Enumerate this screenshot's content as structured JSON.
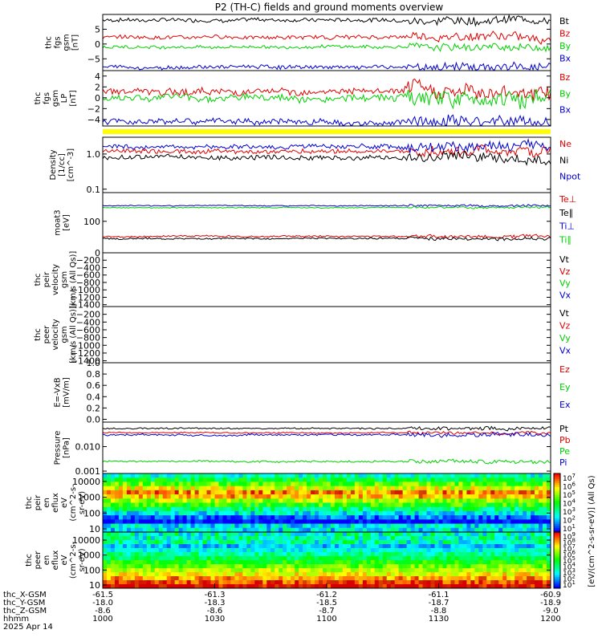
{
  "title": "P2 (TH-C) fields and ground moments overview",
  "colors": {
    "black": "#000000",
    "red": "#e00000",
    "green": "#00d000",
    "blue": "#0000d0",
    "yellow": "#ffff00"
  },
  "chart_data": {
    "type": "line",
    "time": {
      "label": "hhmm",
      "ticks": [
        "1000",
        "1030",
        "1100",
        "1130",
        "1200"
      ],
      "date": "2025 Apr 14"
    },
    "ephemeris": [
      {
        "label": "thc_X-GSM",
        "values": [
          "-61.5",
          "-61.3",
          "-61.2",
          "-61.1",
          "-60.9"
        ]
      },
      {
        "label": "thc_Y-GSM",
        "values": [
          "-18.0",
          "-18.3",
          "-18.5",
          "-18.7",
          "-18.9"
        ]
      },
      {
        "label": "thc_Z-GSM",
        "values": [
          "-8.6",
          "-8.6",
          "-8.7",
          "-8.8",
          "-9.0"
        ]
      }
    ],
    "panels": [
      {
        "id": "fgs_gsm",
        "ylabel": [
          "thc",
          "fgs",
          "gsm",
          "[nT]"
        ],
        "ylim": [
          -9,
          10
        ],
        "yticks": [
          {
            "v": 5,
            "t": "5"
          },
          {
            "v": 0,
            "t": "0"
          },
          {
            "v": -5,
            "t": "−5"
          }
        ],
        "series": [
          {
            "name": "Bt",
            "color": "#000000",
            "level": 8.2,
            "noise": 0.6
          },
          {
            "name": "Bz",
            "color": "#e00000",
            "level": 2.3,
            "noise": 0.6
          },
          {
            "name": "By",
            "color": "#00d000",
            "level": -1.0,
            "noise": 0.5
          },
          {
            "name": "Bx",
            "color": "#0000d0",
            "level": -7.8,
            "noise": 0.6
          }
        ]
      },
      {
        "id": "fgs_gsm_lp",
        "ylabel": [
          "thc",
          "fgs",
          "gsm",
          "LP",
          "[nT]"
        ],
        "ylim": [
          -5.2,
          5
        ],
        "yticks": [
          {
            "v": 4,
            "t": "4"
          },
          {
            "v": 2,
            "t": "2"
          },
          {
            "v": 0,
            "t": "0"
          },
          {
            "v": -2,
            "t": "−2"
          },
          {
            "v": -4,
            "t": "−4"
          }
        ],
        "series": [
          {
            "name": "Bz",
            "color": "#e00000",
            "level": 1.2,
            "noise": 0.6
          },
          {
            "name": "By",
            "color": "#00d000",
            "level": 0.0,
            "noise": 0.6
          },
          {
            "name": "Bx",
            "color": "#0000d0",
            "level": -4.4,
            "noise": 0.5
          }
        ]
      },
      {
        "id": "density",
        "ylabel": [
          "Density",
          "[1/cc]",
          "[cm^-3]"
        ],
        "ylog": true,
        "ylim": [
          0.08,
          3
        ],
        "yticks": [
          {
            "v": 1,
            "t": "1.0"
          },
          {
            "v": 0.1,
            "t": "0.1"
          }
        ],
        "series": [
          {
            "name": "Ne",
            "color": "#e00000",
            "level": 1.2,
            "noise": 0.12
          },
          {
            "name": "Ni",
            "color": "#000000",
            "level": 0.8,
            "noise": 0.12
          },
          {
            "name": "Npot",
            "color": "#0000d0",
            "level": 1.6,
            "noise": 0.12
          }
        ]
      },
      {
        "id": "temp",
        "ylabel": [
          "moat3",
          "[eV]"
        ],
        "ylog": true,
        "ylim": [
          8,
          1000
        ],
        "yticks": [
          {
            "v": 100,
            "t": "100"
          }
        ],
        "series": [
          {
            "name": "Te⊥",
            "color": "#e00000",
            "level": 30,
            "noise": 0.05
          },
          {
            "name": "Te∥",
            "color": "#000000",
            "level": 25,
            "noise": 0.05
          },
          {
            "name": "Ti⊥",
            "color": "#0000d0",
            "level": 350,
            "noise": 0.03
          },
          {
            "name": "Ti∥",
            "color": "#00d000",
            "level": 300,
            "noise": 0.03
          }
        ]
      },
      {
        "id": "peir_vel",
        "ylabel": [
          "thc",
          "peir",
          "velocity",
          "gsm",
          "[km/s (All Qs)]"
        ],
        "ylim": [
          -1450,
          0
        ],
        "yticks": [
          {
            "v": 0,
            "t": "0"
          },
          {
            "v": -200,
            "t": "−200"
          },
          {
            "v": -400,
            "t": "−400"
          },
          {
            "v": -600,
            "t": "−600"
          },
          {
            "v": -800,
            "t": "−800"
          },
          {
            "v": -1000,
            "t": "−1000"
          },
          {
            "v": -1200,
            "t": "−1200"
          },
          {
            "v": -1400,
            "t": "−1400"
          }
        ],
        "series": [
          {
            "name": "Vt",
            "color": "#000000"
          },
          {
            "name": "Vz",
            "color": "#e00000"
          },
          {
            "name": "Vy",
            "color": "#00d000"
          },
          {
            "name": "Vx",
            "color": "#0000d0"
          }
        ]
      },
      {
        "id": "peer_vel",
        "ylabel": [
          "thc",
          "peer",
          "velocity",
          "gsm",
          "[km/s (All Qs)]"
        ],
        "ylim": [
          -1450,
          0
        ],
        "yticks": [
          {
            "v": -200,
            "t": "−200"
          },
          {
            "v": -400,
            "t": "−400"
          },
          {
            "v": -600,
            "t": "−600"
          },
          {
            "v": -800,
            "t": "−800"
          },
          {
            "v": -1000,
            "t": "−1000"
          },
          {
            "v": -1200,
            "t": "−1200"
          },
          {
            "v": -1400,
            "t": "−1400"
          }
        ],
        "series": [
          {
            "name": "Vt",
            "color": "#000000"
          },
          {
            "name": "Vz",
            "color": "#e00000"
          },
          {
            "name": "Vy",
            "color": "#00d000"
          },
          {
            "name": "Vx",
            "color": "#0000d0"
          }
        ]
      },
      {
        "id": "efield",
        "ylabel": [
          "E=-VxB",
          "[mV/m]"
        ],
        "ylim": [
          -0.05,
          1.0
        ],
        "yticks": [
          {
            "v": 1.0,
            "t": "1.0"
          },
          {
            "v": 0.8,
            "t": "0.8"
          },
          {
            "v": 0.6,
            "t": "0.6"
          },
          {
            "v": 0.4,
            "t": "0.4"
          },
          {
            "v": 0.2,
            "t": "0.2"
          },
          {
            "v": 0.0,
            "t": "0.0"
          }
        ],
        "series": [
          {
            "name": "Ez",
            "color": "#e00000"
          },
          {
            "name": "Ey",
            "color": "#00d000"
          },
          {
            "name": "Ex",
            "color": "#0000d0"
          }
        ]
      },
      {
        "id": "pressure",
        "ylabel": [
          "Pressure",
          "[nPa]"
        ],
        "ylog": true,
        "ylim": [
          0.0008,
          0.1
        ],
        "yticks": [
          {
            "v": 0.01,
            "t": "0.010"
          },
          {
            "v": 0.001,
            "t": "0.001"
          }
        ],
        "series": [
          {
            "name": "Pt",
            "color": "#000000",
            "level": 0.055,
            "noise": 0.06
          },
          {
            "name": "Pb",
            "color": "#e00000",
            "level": 0.037,
            "noise": 0.05
          },
          {
            "name": "Pe",
            "color": "#00d000",
            "level": 0.0025,
            "noise": 0.07
          },
          {
            "name": "Pi",
            "color": "#0000d0",
            "level": 0.03,
            "noise": 0.07
          }
        ]
      },
      {
        "id": "peir_eflux",
        "ylabel": [
          "thc",
          "peir",
          "en",
          "eflux",
          "eV",
          "(cm^2-s-",
          "sr-eV)"
        ],
        "spectrogram": true,
        "yticks": [
          {
            "t": "10000"
          },
          {
            "t": "1000"
          },
          {
            "t": "100"
          },
          {
            "t": "10"
          }
        ]
      },
      {
        "id": "peer_eflux",
        "ylabel": [
          "thc",
          "peer",
          "en",
          "eflux",
          "eV",
          "(cm^2-s-",
          "sr-eV)"
        ],
        "spectrogram": true,
        "yticks": [
          {
            "t": "10000"
          },
          {
            "t": "1000"
          },
          {
            "t": "100"
          },
          {
            "t": "10"
          }
        ]
      }
    ],
    "colorbars": [
      {
        "ticks": [
          "10^7",
          "10^6",
          "10^5",
          "10^4",
          "10^3",
          "10^2",
          "10^1"
        ]
      },
      {
        "ticks": [
          "10^9",
          "10^8",
          "10^7",
          "10^6",
          "10^5",
          "10^4",
          "10^3",
          "10^2",
          "10^1"
        ]
      }
    ],
    "colorbar_label": "[eV/(cm^2-s-sr-eV)] (All Qs)"
  }
}
